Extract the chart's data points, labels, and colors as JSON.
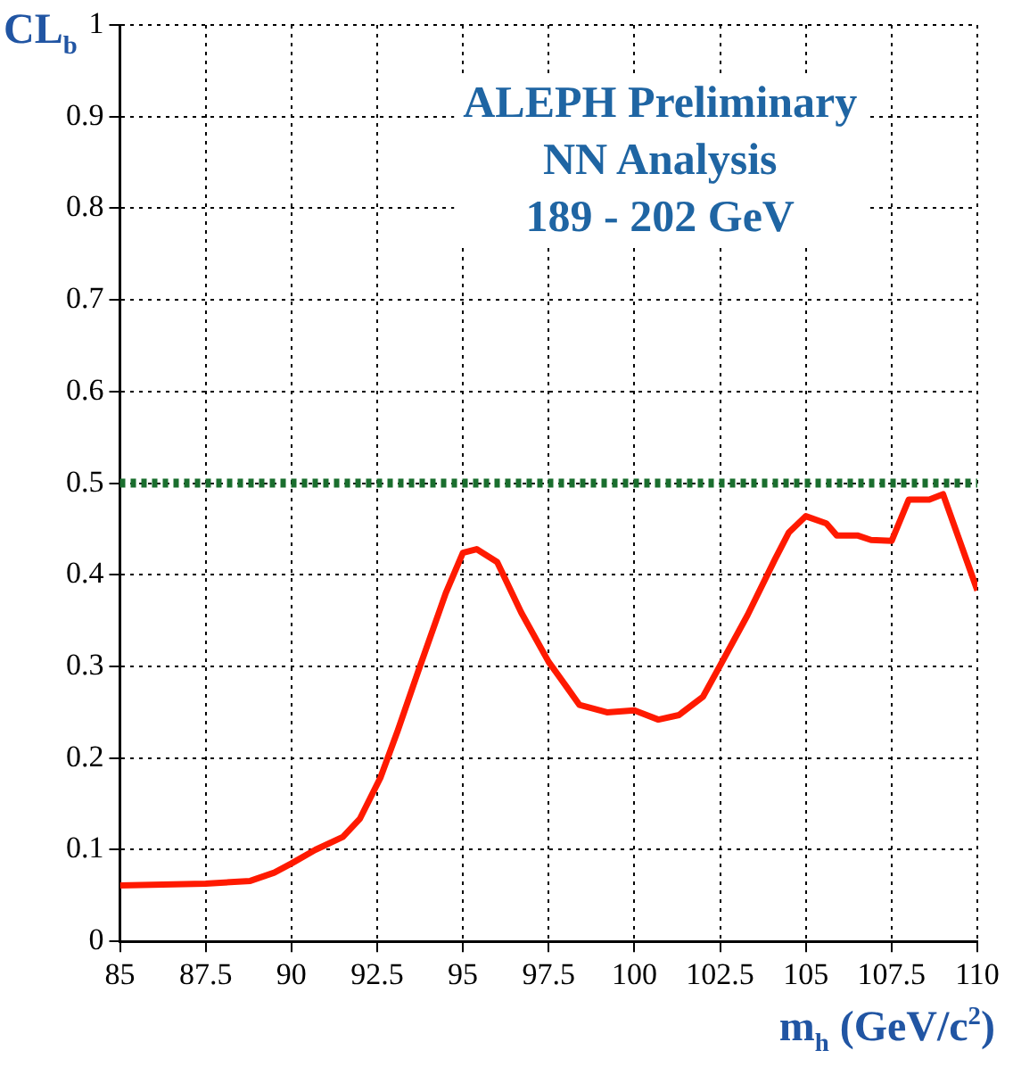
{
  "chart_data": {
    "type": "line",
    "title": "ALEPH Preliminary\nNN Analysis\n189 - 202 GeV",
    "xlabel": "m$_{h}$ (GeV/c$^{2}$)",
    "ylabel": "CL$_{b}$",
    "x": [
      85,
      87.5,
      88.8,
      89.5,
      90,
      90.7,
      91.5,
      92,
      92.6,
      93.1,
      93.7,
      94.5,
      95,
      95.4,
      96,
      96.7,
      97.5,
      98,
      98.4,
      99.2,
      100,
      100.7,
      101.3,
      102,
      102.5,
      103.3,
      104.1,
      104.5,
      105,
      105.6,
      105.9,
      106.5,
      106.9,
      107.5,
      108,
      108.6,
      109,
      110
    ],
    "series": [
      {
        "color": "#ff1a00",
        "values": [
          0.061,
          0.063,
          0.066,
          0.075,
          0.085,
          0.1,
          0.114,
          0.134,
          0.179,
          0.23,
          0.295,
          0.38,
          0.424,
          0.428,
          0.414,
          0.359,
          0.305,
          0.279,
          0.258,
          0.25,
          0.252,
          0.242,
          0.247,
          0.267,
          0.301,
          0.356,
          0.417,
          0.446,
          0.464,
          0.456,
          0.443,
          0.443,
          0.438,
          0.437,
          0.482,
          0.482,
          0.488,
          0.383
        ]
      }
    ],
    "xlim": [
      85,
      110
    ],
    "xticks": [
      85,
      87.5,
      90,
      92.5,
      95,
      97.5,
      100,
      102.5,
      105,
      107.5,
      110
    ],
    "ylim": [
      0,
      1
    ],
    "yticks": [
      0,
      0.1,
      0.2,
      0.3,
      0.4,
      0.5,
      0.6,
      0.7,
      0.8,
      0.9,
      1
    ],
    "ref_lines": [
      {
        "axis": "y",
        "value": 0.5,
        "color": "#1a6e2e",
        "line_style": "dotted"
      }
    ],
    "grid": true,
    "legend": false,
    "marker": "none",
    "line_style": "solid"
  }
}
